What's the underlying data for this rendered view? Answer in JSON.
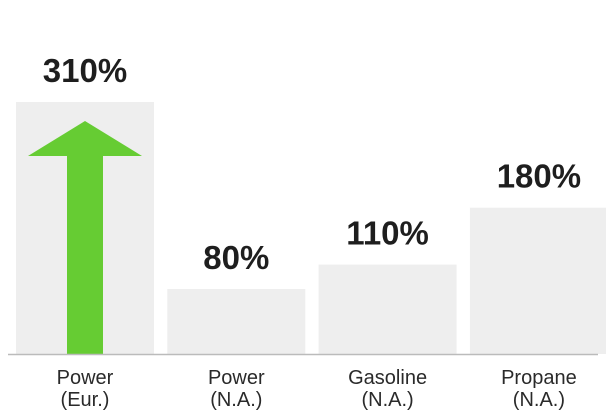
{
  "chart_data": {
    "type": "bar",
    "title": "",
    "xlabel": "",
    "ylabel": "",
    "ylim": [
      0,
      310
    ],
    "categories": [
      [
        "Power",
        "(Eur.)"
      ],
      [
        "Power",
        "(N.A.)"
      ],
      [
        "Gasoline",
        "(N.A.)"
      ],
      [
        "Propane",
        "(N.A.)"
      ]
    ],
    "values": [
      310,
      80,
      110,
      180
    ],
    "data_labels": [
      "310%",
      "80%",
      "110%",
      "180%"
    ],
    "grid": false,
    "legend": "none",
    "annotation": {
      "type": "up-arrow",
      "category_index": 0,
      "color": "#66cc33"
    },
    "colors": {
      "bar": "#eeeeee",
      "baseline": "#bbbbbb",
      "arrow": "#66cc33",
      "value_text": "#1e1e1e",
      "category_text": "#2a2a2a"
    }
  }
}
